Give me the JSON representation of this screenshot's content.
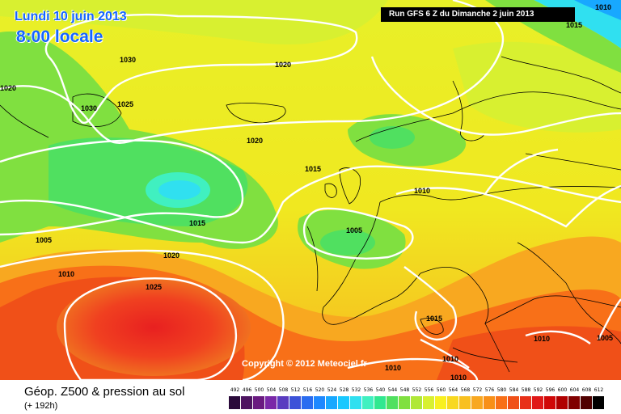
{
  "header": {
    "date": "Lundi 10 juin 2013",
    "time": "8:00 locale",
    "run": "Run GFS 6 Z du Dimanche 2 juin 2013"
  },
  "copyright": "Copyright © 2012 Meteociel.fr",
  "footer": {
    "title": "Géop. Z500 & pression au sol",
    "subtitle": "(+ 192h)"
  },
  "scale": {
    "labels": [
      "492",
      "496",
      "500",
      "504",
      "508",
      "512",
      "516",
      "520",
      "524",
      "528",
      "532",
      "536",
      "540",
      "544",
      "548",
      "552",
      "556",
      "560",
      "564",
      "568",
      "572",
      "576",
      "580",
      "584",
      "588",
      "592",
      "596",
      "600",
      "604",
      "608",
      "612"
    ],
    "colors": [
      "#2a0a3a",
      "#4d1460",
      "#6a1a80",
      "#7a28a8",
      "#5a3cc0",
      "#3c52d8",
      "#2a6cf0",
      "#1e88ff",
      "#18a8ff",
      "#18c8ff",
      "#30e0f0",
      "#40f0c0",
      "#30e890",
      "#50e060",
      "#80e040",
      "#b0e838",
      "#d8f030",
      "#f8f020",
      "#f8d820",
      "#f8c020",
      "#f8a820",
      "#f89018",
      "#f87018",
      "#f05018",
      "#e83018",
      "#e01818",
      "#d00808",
      "#b00000",
      "#800000",
      "#500000",
      "#000000"
    ]
  },
  "isobars": [
    {
      "label": "1030",
      "style": "white"
    },
    {
      "label": "1030",
      "style": "white"
    },
    {
      "label": "1025",
      "style": "white"
    },
    {
      "label": "1020",
      "style": "white"
    },
    {
      "label": "1020",
      "style": "white"
    },
    {
      "label": "1020",
      "style": "white"
    },
    {
      "label": "1020",
      "style": "white"
    },
    {
      "label": "1015",
      "style": "white"
    },
    {
      "label": "1015",
      "style": "white"
    },
    {
      "label": "1015",
      "style": "white"
    },
    {
      "label": "1015",
      "style": "white"
    },
    {
      "label": "1010",
      "style": "white"
    },
    {
      "label": "1010",
      "style": "white"
    },
    {
      "label": "1010",
      "style": "white"
    },
    {
      "label": "1010",
      "style": "white"
    },
    {
      "label": "1010",
      "style": "white"
    },
    {
      "label": "1010",
      "style": "white"
    },
    {
      "label": "1010",
      "style": "white"
    },
    {
      "label": "1005",
      "style": "white"
    },
    {
      "label": "1005",
      "style": "white"
    },
    {
      "label": "1005",
      "style": "white"
    },
    {
      "label": "1025",
      "style": "white"
    }
  ]
}
